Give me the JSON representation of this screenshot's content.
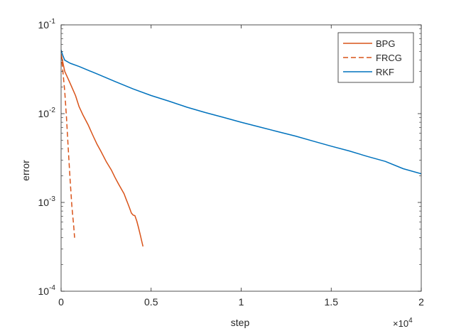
{
  "chart_data": {
    "type": "line",
    "title": "",
    "xlabel": "step",
    "ylabel": "error",
    "x_exponent_label": "×10",
    "x_exponent_power": "4",
    "xlim": [
      0,
      2
    ],
    "ylim_log10": [
      -4,
      -1
    ],
    "yscale": "log",
    "grid": false,
    "legend_position": "top-right",
    "x_ticks": [
      {
        "value": 0,
        "label": "0"
      },
      {
        "value": 0.5,
        "label": "0.5"
      },
      {
        "value": 1,
        "label": "1"
      },
      {
        "value": 1.5,
        "label": "1.5"
      },
      {
        "value": 2,
        "label": "2"
      }
    ],
    "y_ticks": [
      {
        "exp": -4,
        "base": "10",
        "power": "-4"
      },
      {
        "exp": -3,
        "base": "10",
        "power": "-3"
      },
      {
        "exp": -2,
        "base": "10",
        "power": "-2"
      },
      {
        "exp": -1,
        "base": "10",
        "power": "-1"
      }
    ],
    "series": [
      {
        "name": "BPG",
        "color": "#D95319",
        "dash": "solid",
        "x": [
          0,
          0.02,
          0.05,
          0.08,
          0.1,
          0.12,
          0.15,
          0.18,
          0.2,
          0.22,
          0.25,
          0.28,
          0.3,
          0.32,
          0.35,
          0.36,
          0.37,
          0.38,
          0.39,
          0.4,
          0.41,
          0.42,
          0.43,
          0.44,
          0.45,
          0.455
        ],
        "y": [
          0.047,
          0.03,
          0.022,
          0.016,
          0.012,
          0.0098,
          0.0075,
          0.0055,
          0.0045,
          0.0038,
          0.0029,
          0.0023,
          0.0019,
          0.0016,
          0.00125,
          0.0011,
          0.00098,
          0.00087,
          0.00076,
          0.00072,
          0.00071,
          0.00062,
          0.00052,
          0.00043,
          0.00035,
          0.00032
        ]
      },
      {
        "name": "FRCG",
        "color": "#D95319",
        "dash": "dashed",
        "x": [
          0,
          0.01,
          0.02,
          0.03,
          0.04,
          0.05,
          0.06,
          0.07,
          0.075
        ],
        "y": [
          0.047,
          0.03,
          0.018,
          0.009,
          0.004,
          0.0018,
          0.0009,
          0.00055,
          0.0004
        ]
      },
      {
        "name": "RKF",
        "color": "#0072BD",
        "dash": "solid",
        "x": [
          0,
          0.01,
          0.02,
          0.05,
          0.1,
          0.2,
          0.3,
          0.4,
          0.5,
          0.6,
          0.7,
          0.8,
          0.9,
          1.0,
          1.1,
          1.2,
          1.3,
          1.4,
          1.5,
          1.6,
          1.7,
          1.8,
          1.9,
          2.0
        ],
        "y": [
          0.052,
          0.045,
          0.04,
          0.037,
          0.034,
          0.028,
          0.023,
          0.019,
          0.016,
          0.0138,
          0.0118,
          0.0103,
          0.0091,
          0.008,
          0.0071,
          0.0063,
          0.0056,
          0.0049,
          0.0043,
          0.0038,
          0.0033,
          0.0029,
          0.0024,
          0.0021
        ]
      }
    ]
  }
}
